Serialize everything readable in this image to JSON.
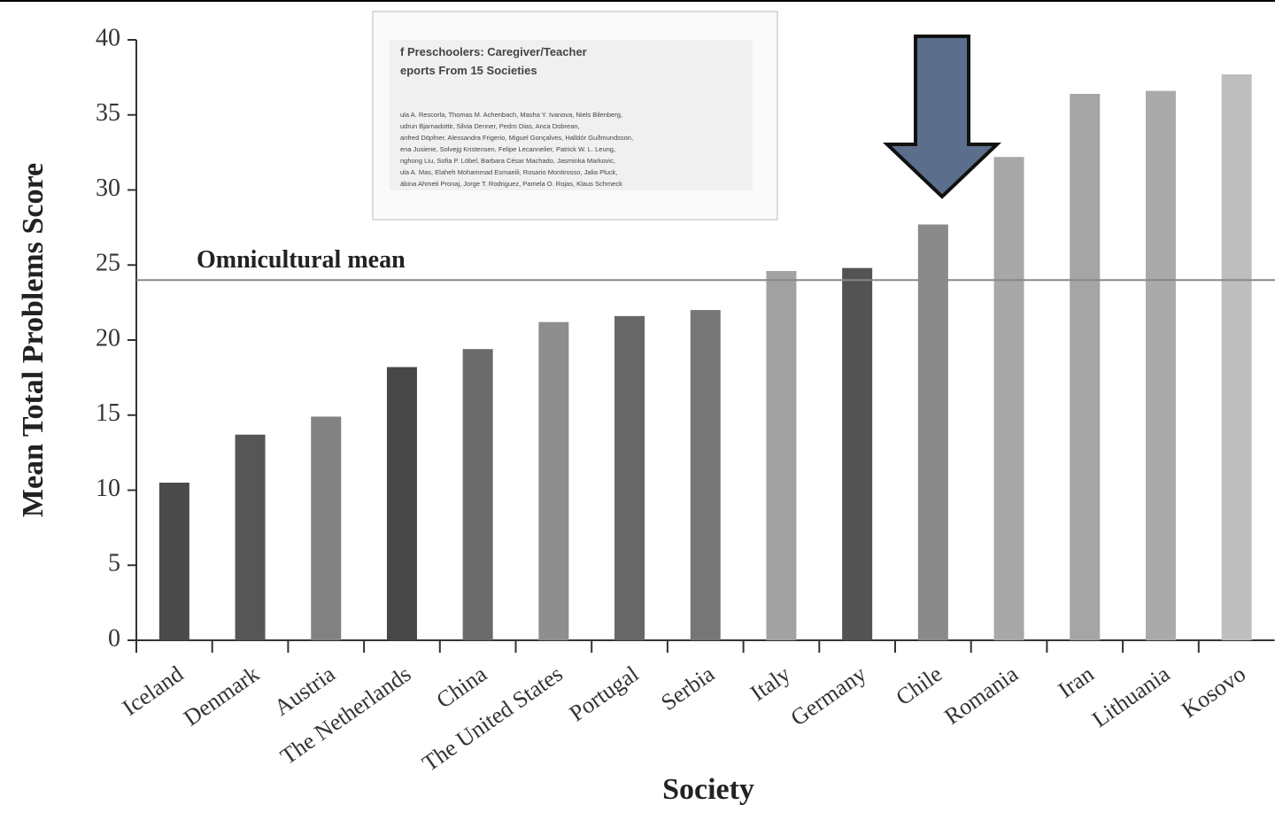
{
  "chart_data": {
    "type": "bar",
    "ylabel": "Mean Total Problems Score",
    "xlabel": "Society",
    "categories": [
      "Iceland",
      "Denmark",
      "Austria",
      "The Netherlands",
      "China",
      "The United States",
      "Portugal",
      "Serbia",
      "Italy",
      "Germany",
      "Chile",
      "Romania",
      "Iran",
      "Lithuania",
      "Kosovo"
    ],
    "values": [
      10.5,
      13.7,
      14.9,
      18.2,
      19.4,
      21.2,
      21.6,
      22.0,
      24.6,
      24.8,
      27.7,
      32.2,
      36.4,
      36.6,
      37.7
    ],
    "colors": [
      "#4a4a4a",
      "#565656",
      "#828282",
      "#474747",
      "#6b6b6b",
      "#8e8e8e",
      "#676767",
      "#767676",
      "#a2a2a2",
      "#535353",
      "#8a8a8a",
      "#a8a8a8",
      "#a5a5a5",
      "#aaaaaa",
      "#bebebe"
    ],
    "ylim": [
      0,
      40
    ],
    "yticks": [
      0,
      5,
      10,
      15,
      20,
      25,
      30,
      35,
      40
    ],
    "reference_line": {
      "value": 24,
      "label": "Omnicultural mean",
      "color": "#888888"
    },
    "inset": {
      "title": [
        "f Preschoolers: Caregiver/Teacher",
        "eports From 15 Societies"
      ],
      "authors": [
        "ula A. Rescorla, Thomas M. Achenbach, Masha Y. Ivanova, Niels Bilenberg,",
        "udrun Bjarnadottir, Silvia Denner, Pedro Dias, Anca Dobrean,",
        "anfred Döpfner, Alessandra Frigerio, Miguel Gonçalves, Halldór Guðmundsson,",
        "ena Jusiene, Solvejg Kristensen, Felipe Lecannelier, Patrick W. L. Leung,",
        "nghong Liu, Sofia P. Löbel, Barbara César Machado, Jasminka Markovic,",
        "ula A. Mas, Elaheh Mohammad Esmaeili, Rosario Montirosso, Jalia Pluck,",
        "ábina Ahmeti Pronaj, Jorge T. Rodriguez, Pamela O. Rojas, Klaus Schmeck"
      ]
    }
  }
}
